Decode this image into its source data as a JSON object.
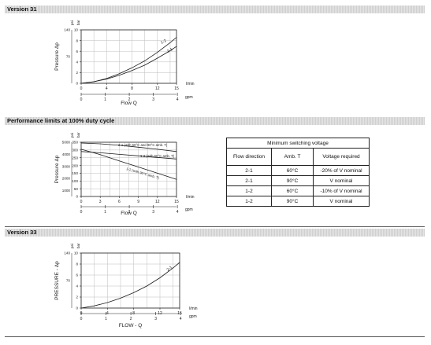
{
  "sections": {
    "version31": "Version 31",
    "performance": "Performance limits at 100% duty cycle",
    "version33": "Version 33"
  },
  "chart_data": [
    {
      "type": "line",
      "title": "Version 31",
      "xlabel": "Flow Q",
      "ylabel": "Pressure Δp",
      "x_units": [
        "l/min",
        "gpm"
      ],
      "y_units": [
        "psi",
        "bar"
      ],
      "xlim": [
        0,
        15
      ],
      "ylim": [
        0,
        10
      ],
      "x_ticks": [
        0,
        4,
        8,
        12,
        15
      ],
      "x_ticks_secondary": [
        "0",
        "1",
        "2",
        "3",
        "4"
      ],
      "y_ticks": [
        0,
        2,
        4,
        6,
        8,
        10
      ],
      "y_ticks_secondary": [
        "",
        "",
        "70",
        "",
        "140"
      ],
      "grid": true,
      "series": [
        {
          "name": "1-2",
          "x": [
            0,
            2,
            4,
            6,
            8,
            10,
            12,
            14,
            15
          ],
          "y": [
            0,
            0.3,
            0.9,
            1.8,
            2.9,
            4.2,
            5.8,
            7.6,
            8.6
          ]
        },
        {
          "name": "2-1",
          "x": [
            0,
            2,
            4,
            6,
            8,
            10,
            12,
            14,
            15
          ],
          "y": [
            0,
            0.3,
            0.8,
            1.5,
            2.4,
            3.4,
            4.7,
            6.1,
            6.9
          ]
        }
      ]
    },
    {
      "type": "line",
      "title": "Performance limits at 100% duty cycle",
      "xlabel": "Flow Q",
      "ylabel": "Pressure Δp",
      "x_units": [
        "l/min",
        "gpm"
      ],
      "y_units": [
        "psi",
        "bar"
      ],
      "xlim": [
        0,
        15
      ],
      "ylim": [
        0,
        350
      ],
      "x_ticks": [
        0,
        3,
        6,
        9,
        12,
        15
      ],
      "x_ticks_secondary": [
        "0",
        "1",
        "2",
        "3",
        "4"
      ],
      "y_ticks": [
        0,
        50,
        100,
        150,
        200,
        250,
        300,
        350
      ],
      "y_ticks_secondary": [
        "",
        "1000",
        "",
        "2000",
        "",
        "3000",
        "",
        "4000",
        "",
        "5000"
      ],
      "grid": true,
      "series": [
        {
          "name": "2-1 (with 60°C and 90°C amb. T)",
          "x": [
            0,
            3,
            6,
            9,
            12,
            15
          ],
          "y": [
            345,
            340,
            330,
            318,
            305,
            290
          ]
        },
        {
          "name": "1-2 (with 60°C amb. T)",
          "x": [
            0,
            3,
            6,
            9,
            12,
            15
          ],
          "y": [
            290,
            282,
            272,
            262,
            252,
            242
          ]
        },
        {
          "name": "1-2 (with 90°C amb. T)",
          "x": [
            0,
            3,
            6,
            9,
            12,
            15
          ],
          "y": [
            305,
            270,
            230,
            190,
            150,
            110
          ]
        }
      ]
    },
    {
      "type": "line",
      "title": "Version 33",
      "xlabel": "FLOW - Q",
      "ylabel": "PRESSURE - Δp",
      "x_units": [
        "l/min",
        "gpm"
      ],
      "y_units": [
        "psi",
        "bar"
      ],
      "xlim": [
        0,
        15
      ],
      "ylim": [
        0,
        10
      ],
      "x_ticks": [
        0,
        4,
        8,
        12,
        15
      ],
      "x_ticks_secondary": [
        "0",
        "1",
        "2",
        "3",
        "4"
      ],
      "y_ticks": [
        0,
        2,
        4,
        6,
        8,
        10
      ],
      "y_ticks_secondary": [
        "",
        "",
        "70",
        "",
        "140"
      ],
      "grid": true,
      "series": [
        {
          "name": "2-1",
          "x": [
            0,
            2,
            4,
            6,
            8,
            10,
            12,
            14,
            15
          ],
          "y": [
            0,
            0.4,
            1.0,
            1.8,
            2.8,
            4.0,
            5.5,
            7.3,
            8.3
          ]
        }
      ]
    },
    {
      "type": "table",
      "title": "Minimum switching voltage",
      "columns": [
        "Flow direction",
        "Amb. T",
        "Voltage required"
      ],
      "rows": [
        [
          "2-1",
          "60°C",
          "-20% of V nominal"
        ],
        [
          "2-1",
          "90°C",
          "V nominal"
        ],
        [
          "1-2",
          "60°C",
          "-10% of V nominal"
        ],
        [
          "1-2",
          "90°C",
          "V nominal"
        ]
      ]
    }
  ]
}
